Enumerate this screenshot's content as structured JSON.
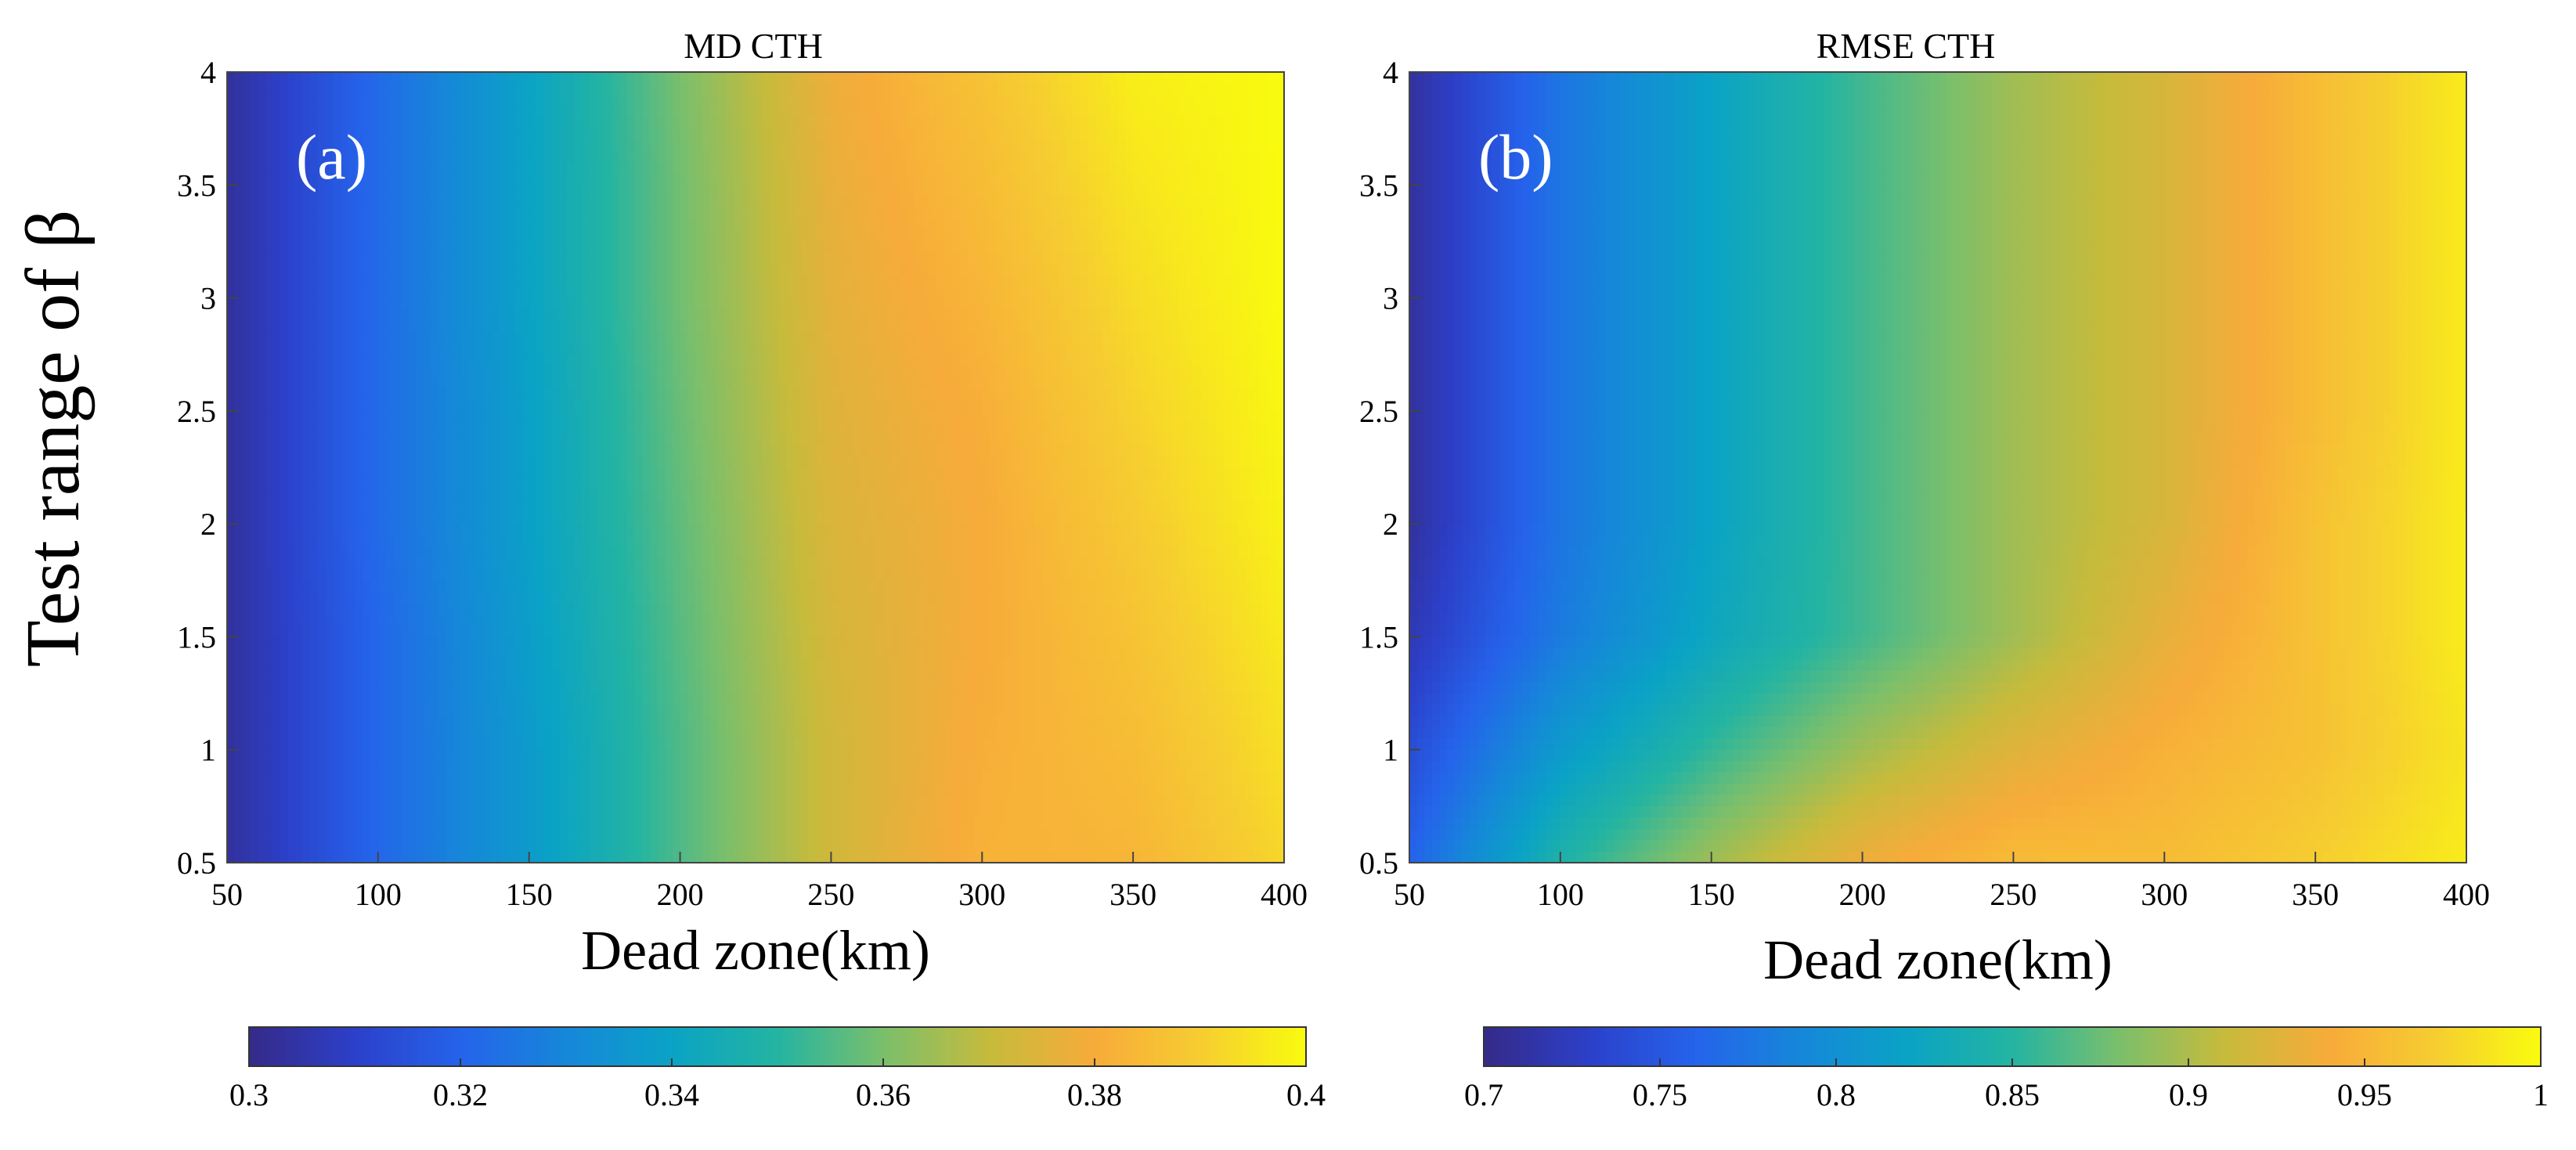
{
  "figure": {
    "ylabel": "Test range of β",
    "shared_xlabel": "Dead zone(km)"
  },
  "chart_data": [
    {
      "type": "heatmap",
      "title": "MD CTH",
      "panel_label": "(a)",
      "xlabel": "Dead zone(km)",
      "ylabel": "Test range of β",
      "x": [
        50,
        100,
        150,
        200,
        250,
        300,
        350,
        400
      ],
      "y": [
        0.5,
        1,
        1.5,
        2,
        2.5,
        3,
        3.5,
        4
      ],
      "xlim": [
        50,
        400
      ],
      "ylim": [
        0.5,
        4
      ],
      "xticks": [
        "50",
        "100",
        "150",
        "200",
        "250",
        "300",
        "350",
        "400"
      ],
      "yticks": [
        "0.5",
        "1",
        "1.5",
        "2",
        "2.5",
        "3",
        "3.5",
        "4"
      ],
      "z_note": "rows correspond to y (0.5 → 4), columns to x (50 → 400)",
      "z": [
        [
          0.303,
          0.321,
          0.337,
          0.355,
          0.372,
          0.382,
          0.383,
          0.392
        ],
        [
          0.303,
          0.321,
          0.337,
          0.355,
          0.372,
          0.381,
          0.385,
          0.394
        ],
        [
          0.303,
          0.321,
          0.338,
          0.356,
          0.373,
          0.38,
          0.387,
          0.396
        ],
        [
          0.303,
          0.322,
          0.339,
          0.357,
          0.374,
          0.38,
          0.389,
          0.398
        ],
        [
          0.303,
          0.322,
          0.339,
          0.358,
          0.375,
          0.381,
          0.391,
          0.399
        ],
        [
          0.303,
          0.322,
          0.34,
          0.359,
          0.376,
          0.383,
          0.393,
          0.4
        ],
        [
          0.303,
          0.322,
          0.34,
          0.359,
          0.377,
          0.385,
          0.395,
          0.4
        ],
        [
          0.303,
          0.322,
          0.34,
          0.36,
          0.378,
          0.387,
          0.397,
          0.4
        ]
      ],
      "colorbar": {
        "range": [
          0.3,
          0.4
        ],
        "ticks": [
          "0.3",
          "0.32",
          "0.34",
          "0.36",
          "0.38",
          "0.4"
        ]
      }
    },
    {
      "type": "heatmap",
      "title": "RMSE CTH",
      "panel_label": "(b)",
      "xlabel": "Dead zone(km)",
      "ylabel": "Test range of β",
      "x": [
        50,
        100,
        150,
        200,
        250,
        300,
        350,
        400
      ],
      "y": [
        0.5,
        1,
        1.5,
        2,
        2.5,
        3,
        3.5,
        4
      ],
      "xlim": [
        50,
        400
      ],
      "ylim": [
        0.5,
        4
      ],
      "xticks": [
        "50",
        "100",
        "150",
        "200",
        "250",
        "300",
        "350",
        "400"
      ],
      "yticks": [
        "0.5",
        "1",
        "1.5",
        "2",
        "2.5",
        "3",
        "3.5",
        "4"
      ],
      "z_note": "rows correspond to y (0.5 → 4), columns to x (50 → 400)",
      "z": [
        [
          0.76,
          0.845,
          0.895,
          0.935,
          0.955,
          0.955,
          0.97,
          0.99
        ],
        [
          0.74,
          0.81,
          0.855,
          0.895,
          0.925,
          0.945,
          0.96,
          0.985
        ],
        [
          0.72,
          0.78,
          0.825,
          0.86,
          0.895,
          0.93,
          0.96,
          0.99
        ],
        [
          0.71,
          0.775,
          0.82,
          0.86,
          0.895,
          0.92,
          0.96,
          0.99
        ],
        [
          0.71,
          0.775,
          0.82,
          0.86,
          0.895,
          0.92,
          0.955,
          0.99
        ],
        [
          0.71,
          0.775,
          0.82,
          0.86,
          0.895,
          0.92,
          0.955,
          0.99
        ],
        [
          0.71,
          0.775,
          0.82,
          0.86,
          0.895,
          0.92,
          0.955,
          0.99
        ],
        [
          0.71,
          0.775,
          0.82,
          0.86,
          0.895,
          0.92,
          0.955,
          0.99
        ]
      ],
      "colorbar": {
        "range": [
          0.7,
          1.0
        ],
        "ticks": [
          "0.7",
          "0.75",
          "0.8",
          "0.85",
          "0.9",
          "0.95",
          "1"
        ]
      }
    }
  ],
  "colormap": {
    "name": "parula",
    "stops": [
      "#352a87",
      "#2c40c9",
      "#2563eb",
      "#1687d9",
      "#0aa3c5",
      "#24b4a2",
      "#7abf6c",
      "#c6bb3c",
      "#f7ab3a",
      "#f6cd31",
      "#f9fb0e"
    ]
  }
}
